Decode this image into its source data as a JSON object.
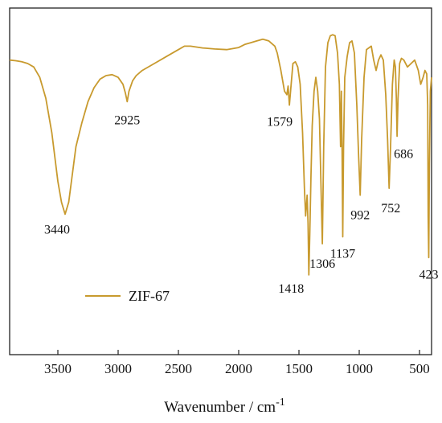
{
  "chart_data": {
    "type": "line",
    "title": "",
    "xlabel": "Wavenumber / cm",
    "xlabel_superscript": "-1",
    "ylabel": "",
    "xlim": [
      3900,
      400
    ],
    "x_reversed": true,
    "ylim": [
      0,
      100
    ],
    "x_ticks": [
      3500,
      3000,
      2500,
      2000,
      1500,
      1000,
      500
    ],
    "y_tick_labels": false,
    "grid": false,
    "legend": {
      "placement": "bottom-left"
    },
    "line_color": "#c89a2e",
    "series": [
      {
        "name": "ZIF-67",
        "x": [
          3900,
          3850,
          3800,
          3750,
          3700,
          3650,
          3600,
          3550,
          3500,
          3470,
          3440,
          3410,
          3380,
          3350,
          3300,
          3250,
          3200,
          3150,
          3100,
          3050,
          3000,
          2960,
          2940,
          2925,
          2910,
          2880,
          2850,
          2800,
          2700,
          2600,
          2500,
          2450,
          2400,
          2300,
          2200,
          2100,
          2000,
          1950,
          1900,
          1850,
          1800,
          1750,
          1700,
          1680,
          1650,
          1620,
          1600,
          1590,
          1579,
          1565,
          1550,
          1530,
          1510,
          1490,
          1470,
          1455,
          1445,
          1432,
          1425,
          1418,
          1410,
          1400,
          1390,
          1375,
          1360,
          1345,
          1330,
          1318,
          1306,
          1295,
          1280,
          1260,
          1240,
          1220,
          1200,
          1180,
          1165,
          1155,
          1148,
          1142,
          1137,
          1130,
          1120,
          1100,
          1080,
          1060,
          1040,
          1020,
          1005,
          992,
          980,
          960,
          940,
          900,
          880,
          860,
          840,
          820,
          800,
          780,
          765,
          752,
          740,
          725,
          710,
          700,
          692,
          686,
          678,
          665,
          650,
          630,
          600,
          570,
          540,
          510,
          490,
          470,
          455,
          440,
          432,
          428,
          423,
          418,
          410,
          400
        ],
        "y": [
          85,
          84.8,
          84.5,
          84,
          83,
          80,
          74,
          64,
          50,
          44,
          40.5,
          44,
          52,
          60,
          67,
          73,
          77,
          79.5,
          80.5,
          80.8,
          80,
          78,
          75.5,
          73,
          76,
          79,
          80.5,
          82,
          84,
          86,
          88,
          89,
          89,
          88.5,
          88.2,
          88,
          88.6,
          89.5,
          90,
          90.5,
          91,
          90.5,
          89,
          87,
          82,
          76,
          75,
          77.5,
          72,
          78,
          84,
          84.5,
          83,
          78,
          64,
          48,
          40,
          46,
          38,
          23,
          35,
          52,
          66,
          76,
          80,
          76,
          68,
          50,
          32,
          60,
          83,
          90,
          92,
          92.3,
          92,
          87,
          78,
          60,
          76,
          58,
          34,
          60,
          80,
          86,
          90,
          90.5,
          87,
          72,
          57,
          46,
          62,
          80,
          88,
          89,
          85,
          82,
          85,
          86.5,
          85,
          75,
          62,
          48,
          60,
          78,
          85,
          83,
          74,
          63,
          74,
          84,
          85.5,
          85,
          83,
          84,
          85,
          82,
          78,
          80,
          82,
          81,
          72,
          40,
          28,
          55,
          76,
          80
        ]
      }
    ],
    "annotations": [
      {
        "text": "3440",
        "x": 3440
      },
      {
        "text": "2925",
        "x": 2925
      },
      {
        "text": "1579",
        "x": 1579
      },
      {
        "text": "1418",
        "x": 1418
      },
      {
        "text": "1306",
        "x": 1306
      },
      {
        "text": "1137",
        "x": 1137
      },
      {
        "text": "992",
        "x": 992
      },
      {
        "text": "752",
        "x": 752
      },
      {
        "text": "686",
        "x": 686
      },
      {
        "text": "423",
        "x": 423
      }
    ]
  }
}
